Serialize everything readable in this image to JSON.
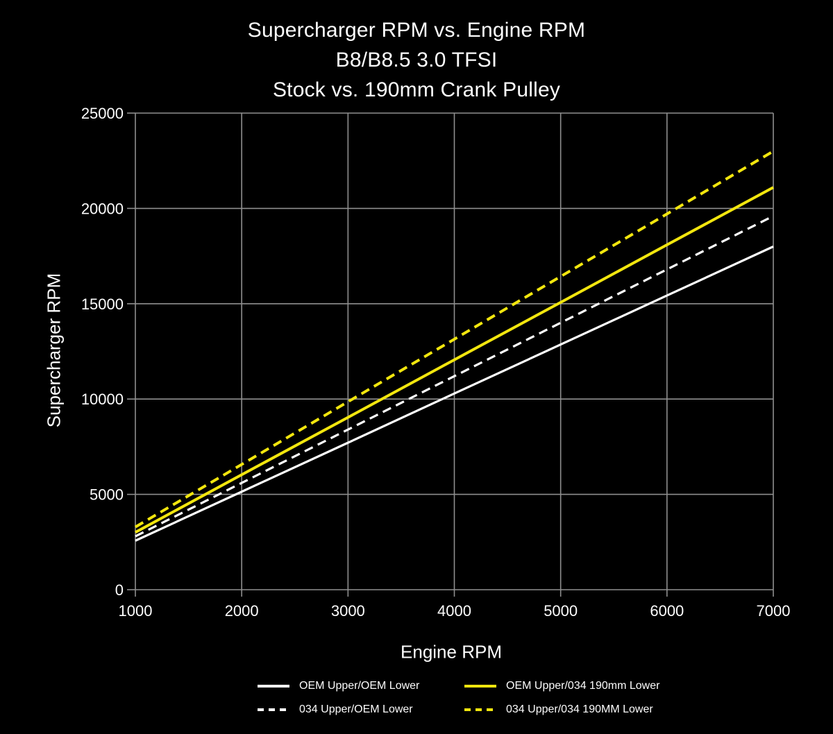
{
  "title": {
    "line1": "Supercharger RPM vs. Engine RPM",
    "line2": "B8/B8.5 3.0 TFSI",
    "line3": "Stock vs. 190mm Crank Pulley"
  },
  "colors": {
    "background": "#000000",
    "grid": "#8f8f8f",
    "text": "#fdfdfd",
    "series_white": "#ffffff",
    "series_yellow": "#f2e60e"
  },
  "chart_data": {
    "type": "line",
    "title": "Supercharger RPM vs. Engine RPM  B8/B8.5 3.0 TFSI  Stock vs. 190mm Crank Pulley",
    "xlabel": "Engine RPM",
    "ylabel": "Supercharger RPM",
    "x": [
      1000,
      2000,
      3000,
      4000,
      5000,
      6000,
      7000
    ],
    "xlim": [
      1000,
      7000
    ],
    "ylim": [
      0,
      25000
    ],
    "xticks": [
      1000,
      2000,
      3000,
      4000,
      5000,
      6000,
      7000
    ],
    "yticks": [
      0,
      5000,
      10000,
      15000,
      20000,
      25000
    ],
    "grid": true,
    "legend_position": "bottom",
    "series": [
      {
        "name": "OEM Upper/OEM Lower",
        "color": "#ffffff",
        "style": "solid",
        "values": [
          2570,
          5140,
          7710,
          10290,
          12860,
          15430,
          18000
        ]
      },
      {
        "name": "034 Upper/OEM Lower",
        "color": "#ffffff",
        "style": "dashed",
        "values": [
          2800,
          5600,
          8400,
          11200,
          14000,
          16800,
          19600
        ]
      },
      {
        "name": "OEM Upper/034 190mm Lower",
        "color": "#f2e60e",
        "style": "solid",
        "values": [
          3010,
          6030,
          9040,
          12060,
          15070,
          18090,
          21100
        ]
      },
      {
        "name": "034 Upper/034 190MM Lower",
        "color": "#f2e60e",
        "style": "dashed",
        "values": [
          3290,
          6570,
          9860,
          13140,
          16430,
          19710,
          23000
        ]
      }
    ]
  }
}
